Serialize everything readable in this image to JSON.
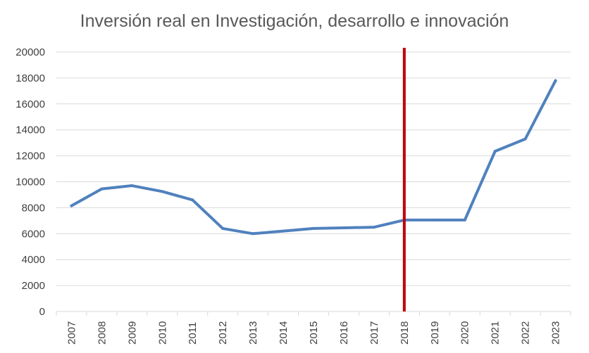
{
  "chart_data": {
    "type": "line",
    "title": "Inversión real en Investigación, desarrollo e innovación",
    "xlabel": "",
    "ylabel": "",
    "categories": [
      "2007",
      "2008",
      "2009",
      "2010",
      "2011",
      "2012",
      "2013",
      "2014",
      "2015",
      "2016",
      "2017",
      "2018",
      "2019",
      "2020",
      "2021",
      "2022",
      "2023"
    ],
    "series": [
      {
        "values": [
          8150,
          9450,
          9700,
          9250,
          8600,
          6400,
          6000,
          6200,
          6400,
          6450,
          6500,
          7050,
          7050,
          7050,
          12350,
          13300,
          17800
        ]
      }
    ],
    "ylim": [
      0,
      20000
    ],
    "yticks": [
      "0",
      "2000",
      "4000",
      "6000",
      "8000",
      "10000",
      "12000",
      "14000",
      "16000",
      "18000",
      "20000"
    ],
    "grid": "horizontal",
    "annotation": {
      "type": "vertical-line",
      "x": "2018"
    },
    "colors": {
      "series": "#4F81BD",
      "marker_line": "#C00000",
      "grid": "#D9D9D9",
      "text": "#404040"
    }
  }
}
